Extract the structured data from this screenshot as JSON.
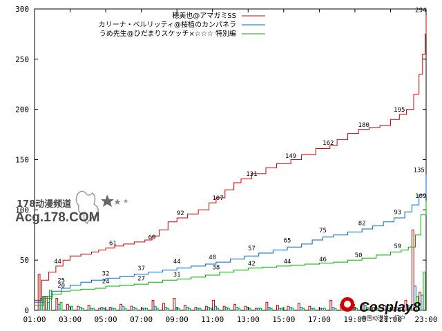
{
  "chart_data": {
    "type": "line",
    "title": "",
    "xlabel": "",
    "ylabel": "",
    "xlim": [
      1,
      23
    ],
    "ylim": [
      0,
      300
    ],
    "x_ticks": [
      "01:00",
      "03:00",
      "05:00",
      "07:00",
      "09:00",
      "11:00",
      "13:00",
      "15:00",
      "17:00",
      "19:00",
      "21:00",
      "23:00"
    ],
    "y_ticks": [
      0,
      50,
      100,
      150,
      200,
      250,
      300
    ],
    "grid": false,
    "legend_position": "top-right",
    "series": [
      {
        "name": "穂美也@アマガミSS",
        "color": "#cc0000",
        "points": [
          [
            1,
            10
          ],
          [
            1.4,
            30
          ],
          [
            1.8,
            38
          ],
          [
            2.2,
            44
          ],
          [
            2.6,
            50
          ],
          [
            3,
            54
          ],
          [
            3.6,
            56
          ],
          [
            4.2,
            58
          ],
          [
            4.6,
            60
          ],
          [
            5,
            62
          ],
          [
            5.5,
            64
          ],
          [
            6,
            66
          ],
          [
            6.6,
            68
          ],
          [
            7.2,
            70
          ],
          [
            7.6,
            74
          ],
          [
            8,
            80
          ],
          [
            8.5,
            88
          ],
          [
            9,
            92
          ],
          [
            9.6,
            96
          ],
          [
            10.2,
            100
          ],
          [
            10.8,
            107
          ],
          [
            11.2,
            112
          ],
          [
            11.7,
            120
          ],
          [
            12.2,
            127
          ],
          [
            12.6,
            131
          ],
          [
            13.2,
            136
          ],
          [
            14,
            142
          ],
          [
            14.6,
            146
          ],
          [
            15.4,
            150
          ],
          [
            16,
            155
          ],
          [
            16.8,
            161
          ],
          [
            17.6,
            164
          ],
          [
            18,
            170
          ],
          [
            18.6,
            176
          ],
          [
            19.2,
            180
          ],
          [
            19.8,
            182
          ],
          [
            20.4,
            184
          ],
          [
            21,
            190
          ],
          [
            21.5,
            195
          ],
          [
            21.9,
            200
          ],
          [
            22.3,
            215
          ],
          [
            22.6,
            235
          ],
          [
            22.8,
            255
          ],
          [
            22.95,
            275
          ],
          [
            23,
            294
          ]
        ],
        "labels": [
          {
            "x": 2.3,
            "y": 44,
            "text": "44"
          },
          {
            "x": 5.4,
            "y": 62,
            "text": "61"
          },
          {
            "x": 7.6,
            "y": 68,
            "text": "69"
          },
          {
            "x": 9.2,
            "y": 92,
            "text": "92"
          },
          {
            "x": 11.3,
            "y": 107,
            "text": "107"
          },
          {
            "x": 13.2,
            "y": 131,
            "text": "131"
          },
          {
            "x": 15.4,
            "y": 149,
            "text": "149"
          },
          {
            "x": 17.5,
            "y": 162,
            "text": "162"
          },
          {
            "x": 19.5,
            "y": 180,
            "text": "180"
          },
          {
            "x": 21.5,
            "y": 195,
            "text": "195"
          },
          {
            "x": 22.7,
            "y": 294,
            "text": "294"
          }
        ]
      },
      {
        "name": "カリーナ・ベルリッティ@桜植のカンパネラ",
        "color": "#0066cc",
        "points": [
          [
            1,
            8
          ],
          [
            1.5,
            14
          ],
          [
            2,
            19
          ],
          [
            2.5,
            22
          ],
          [
            3,
            25
          ],
          [
            3.6,
            28
          ],
          [
            4.2,
            30
          ],
          [
            5,
            32
          ],
          [
            5.8,
            34
          ],
          [
            6.6,
            36
          ],
          [
            7.4,
            38
          ],
          [
            8.2,
            40
          ],
          [
            9,
            42
          ],
          [
            9.8,
            44
          ],
          [
            10.6,
            46
          ],
          [
            11.2,
            48
          ],
          [
            12,
            51
          ],
          [
            12.8,
            54
          ],
          [
            13.6,
            57
          ],
          [
            14.4,
            60
          ],
          [
            15.2,
            63
          ],
          [
            16,
            66
          ],
          [
            16.6,
            70
          ],
          [
            17.2,
            73
          ],
          [
            17.8,
            75
          ],
          [
            18.6,
            78
          ],
          [
            19.4,
            81
          ],
          [
            20,
            84
          ],
          [
            20.6,
            88
          ],
          [
            21.2,
            92
          ],
          [
            21.8,
            98
          ],
          [
            22.2,
            105
          ],
          [
            22.6,
            115
          ],
          [
            23,
            135
          ]
        ],
        "labels": [
          {
            "x": 2.5,
            "y": 25,
            "text": "25"
          },
          {
            "x": 5,
            "y": 32,
            "text": "32"
          },
          {
            "x": 7,
            "y": 37,
            "text": "37"
          },
          {
            "x": 9,
            "y": 44,
            "text": "44"
          },
          {
            "x": 11,
            "y": 48,
            "text": "48"
          },
          {
            "x": 13.2,
            "y": 57,
            "text": "57"
          },
          {
            "x": 15.2,
            "y": 65,
            "text": "65"
          },
          {
            "x": 17.2,
            "y": 75,
            "text": "75"
          },
          {
            "x": 19.4,
            "y": 82,
            "text": "82"
          },
          {
            "x": 21.4,
            "y": 93,
            "text": "93"
          },
          {
            "x": 22.6,
            "y": 135,
            "text": "135"
          }
        ]
      },
      {
        "name": "うめ先生@ひだまりスケッチ×☆☆☆ 特別編",
        "color": "#00aa00",
        "points": [
          [
            1,
            5
          ],
          [
            1.5,
            12
          ],
          [
            2,
            16
          ],
          [
            2.5,
            19
          ],
          [
            3,
            20
          ],
          [
            3.6,
            21
          ],
          [
            4.4,
            22
          ],
          [
            5,
            24
          ],
          [
            5.8,
            25
          ],
          [
            6.6,
            26
          ],
          [
            7.4,
            28
          ],
          [
            8.2,
            30
          ],
          [
            9,
            31
          ],
          [
            9.8,
            33
          ],
          [
            10.6,
            35
          ],
          [
            11.4,
            38
          ],
          [
            12.2,
            40
          ],
          [
            13,
            42
          ],
          [
            13.8,
            43
          ],
          [
            14.6,
            44
          ],
          [
            15.4,
            45
          ],
          [
            16.2,
            46
          ],
          [
            17,
            47
          ],
          [
            17.8,
            48
          ],
          [
            18.6,
            50
          ],
          [
            19.4,
            52
          ],
          [
            20.2,
            55
          ],
          [
            21,
            58
          ],
          [
            21.6,
            60
          ],
          [
            22,
            63
          ],
          [
            22.4,
            75
          ],
          [
            22.7,
            95
          ],
          [
            23,
            109
          ]
        ],
        "labels": [
          {
            "x": 2.5,
            "y": 20,
            "text": "20"
          },
          {
            "x": 5,
            "y": 24,
            "text": "24"
          },
          {
            "x": 7,
            "y": 27,
            "text": "27"
          },
          {
            "x": 9,
            "y": 31,
            "text": "31"
          },
          {
            "x": 11.2,
            "y": 38,
            "text": "38"
          },
          {
            "x": 13.2,
            "y": 42,
            "text": "42"
          },
          {
            "x": 15.2,
            "y": 44,
            "text": "44"
          },
          {
            "x": 17.2,
            "y": 46,
            "text": "46"
          },
          {
            "x": 19.2,
            "y": 50,
            "text": "50"
          },
          {
            "x": 21.4,
            "y": 59,
            "text": "59"
          },
          {
            "x": 22.7,
            "y": 109,
            "text": "109"
          }
        ]
      }
    ],
    "bars": [
      {
        "color": "#cc0000",
        "offset": 0,
        "values": [
          [
            1.2,
            36
          ],
          [
            1.6,
            14
          ],
          [
            2.2,
            12
          ],
          [
            2.8,
            6
          ],
          [
            3.4,
            4
          ],
          [
            4,
            5
          ],
          [
            4.6,
            2
          ],
          [
            5.2,
            3
          ],
          [
            5.8,
            6
          ],
          [
            6.4,
            4
          ],
          [
            7,
            2
          ],
          [
            7.6,
            10
          ],
          [
            8.2,
            7
          ],
          [
            8.8,
            12
          ],
          [
            9.4,
            5
          ],
          [
            10,
            3
          ],
          [
            10.6,
            4
          ],
          [
            11,
            10
          ],
          [
            11.6,
            4
          ],
          [
            12.2,
            6
          ],
          [
            12.8,
            4
          ],
          [
            13.4,
            2
          ],
          [
            14,
            8
          ],
          [
            14.6,
            5
          ],
          [
            15.2,
            4
          ],
          [
            15.8,
            7
          ],
          [
            16.4,
            4
          ],
          [
            17,
            2
          ],
          [
            17.6,
            10
          ],
          [
            18.2,
            6
          ],
          [
            18.8,
            4
          ],
          [
            19.4,
            6
          ],
          [
            20,
            3
          ],
          [
            20.6,
            5
          ],
          [
            21.2,
            3
          ],
          [
            21.8,
            10
          ],
          [
            22.2,
            80
          ],
          [
            22.6,
            18
          ]
        ]
      },
      {
        "color": "#0066cc",
        "offset": 0.12,
        "values": [
          [
            1.2,
            12
          ],
          [
            1.6,
            8
          ],
          [
            2.2,
            6
          ],
          [
            2.8,
            4
          ],
          [
            3.4,
            3
          ],
          [
            4,
            2
          ],
          [
            4.6,
            3
          ],
          [
            5.2,
            2
          ],
          [
            5.8,
            4
          ],
          [
            6.4,
            3
          ],
          [
            7,
            2
          ],
          [
            7.6,
            4
          ],
          [
            8.2,
            3
          ],
          [
            8.8,
            3
          ],
          [
            9.4,
            3
          ],
          [
            10,
            2
          ],
          [
            10.6,
            3
          ],
          [
            11,
            4
          ],
          [
            11.6,
            3
          ],
          [
            12.2,
            3
          ],
          [
            12.8,
            3
          ],
          [
            13.4,
            2
          ],
          [
            14,
            3
          ],
          [
            14.6,
            2
          ],
          [
            15.2,
            3
          ],
          [
            15.8,
            3
          ],
          [
            16.4,
            2
          ],
          [
            17,
            2
          ],
          [
            17.6,
            3
          ],
          [
            18.2,
            4
          ],
          [
            18.8,
            3
          ],
          [
            19.4,
            5
          ],
          [
            20,
            3
          ],
          [
            20.6,
            4
          ],
          [
            21.2,
            3
          ],
          [
            21.8,
            5
          ],
          [
            22.2,
            24
          ],
          [
            22.6,
            15
          ]
        ]
      },
      {
        "color": "#00aa00",
        "offset": 0.24,
        "values": [
          [
            1.2,
            14
          ],
          [
            1.6,
            20
          ],
          [
            2.2,
            8
          ],
          [
            2.8,
            4
          ],
          [
            3.4,
            2
          ],
          [
            4,
            2
          ],
          [
            4.6,
            2
          ],
          [
            5.2,
            2
          ],
          [
            5.8,
            2
          ],
          [
            6.4,
            2
          ],
          [
            7,
            2
          ],
          [
            7.6,
            2
          ],
          [
            8.2,
            2
          ],
          [
            8.8,
            2
          ],
          [
            9.4,
            2
          ],
          [
            10,
            2
          ],
          [
            10.6,
            2
          ],
          [
            11,
            2
          ],
          [
            11.6,
            2
          ],
          [
            12.2,
            2
          ],
          [
            12.8,
            2
          ],
          [
            13.4,
            2
          ],
          [
            14,
            2
          ],
          [
            14.6,
            2
          ],
          [
            15.2,
            2
          ],
          [
            15.8,
            2
          ],
          [
            16.4,
            2
          ],
          [
            17,
            2
          ],
          [
            17.6,
            2
          ],
          [
            18.2,
            2
          ],
          [
            18.8,
            2
          ],
          [
            19.4,
            3
          ],
          [
            20,
            2
          ],
          [
            20.6,
            2
          ],
          [
            21.2,
            2
          ],
          [
            21.8,
            3
          ],
          [
            22.2,
            14
          ],
          [
            22.6,
            38
          ]
        ]
      }
    ]
  },
  "watermarks": {
    "site_cn": "178动漫频道",
    "site_acg": "Acg.178.COM",
    "cosplay_brand": "Cosplay8",
    "cosplay_sub": "中国动漫第一门户"
  }
}
